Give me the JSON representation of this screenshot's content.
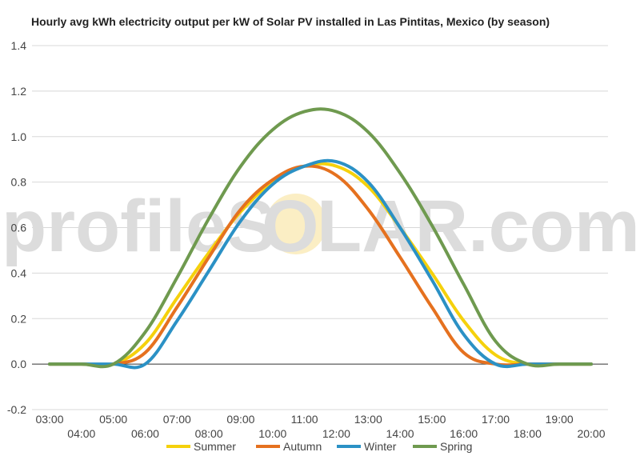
{
  "watermark": {
    "left": "profileS",
    "sun": "O",
    "right": "LAR.com"
  },
  "colors": {
    "grid": "#d8d8d8",
    "zero_line": "#333333",
    "sun": "#fbeec4"
  },
  "chart_data": {
    "type": "line",
    "title": "Hourly avg kWh electricity output per kW of Solar PV installed in Las Pintitas, Mexico (by season)",
    "xlabel": "",
    "ylabel": "",
    "ylim": [
      -0.2,
      1.4
    ],
    "yticks": [
      "1.4",
      "1.2",
      "1.0",
      "0.8",
      "0.6",
      "0.4",
      "0.2",
      "0.0",
      "-0.2"
    ],
    "ytick_values": [
      1.4,
      1.2,
      1.0,
      0.8,
      0.6,
      0.4,
      0.2,
      0.0,
      -0.2
    ],
    "x": [
      "03:00",
      "04:00",
      "05:00",
      "06:00",
      "07:00",
      "08:00",
      "09:00",
      "10:00",
      "11:00",
      "12:00",
      "13:00",
      "14:00",
      "15:00",
      "16:00",
      "17:00",
      "18:00",
      "19:00",
      "20:00"
    ],
    "grid": true,
    "legend_position": "bottom",
    "series": [
      {
        "name": "Summer",
        "color": "#f5d10c",
        "values": [
          0,
          0,
          0,
          0.09,
          0.29,
          0.49,
          0.67,
          0.8,
          0.87,
          0.87,
          0.78,
          0.6,
          0.4,
          0.19,
          0.04,
          0,
          0,
          0
        ]
      },
      {
        "name": "Autumn",
        "color": "#e5711f",
        "values": [
          0,
          0,
          0,
          0.05,
          0.25,
          0.47,
          0.68,
          0.81,
          0.87,
          0.83,
          0.68,
          0.47,
          0.25,
          0.05,
          0,
          0,
          0,
          0
        ]
      },
      {
        "name": "Winter",
        "color": "#2b91c5",
        "values": [
          0,
          0,
          0,
          0,
          0.19,
          0.41,
          0.63,
          0.79,
          0.87,
          0.89,
          0.8,
          0.6,
          0.37,
          0.13,
          0,
          0,
          0,
          0
        ]
      },
      {
        "name": "Spring",
        "color": "#6f9a4f",
        "values": [
          0,
          0,
          0,
          0.14,
          0.38,
          0.64,
          0.87,
          1.03,
          1.11,
          1.11,
          1.02,
          0.84,
          0.61,
          0.35,
          0.1,
          0,
          0,
          0
        ]
      }
    ]
  }
}
